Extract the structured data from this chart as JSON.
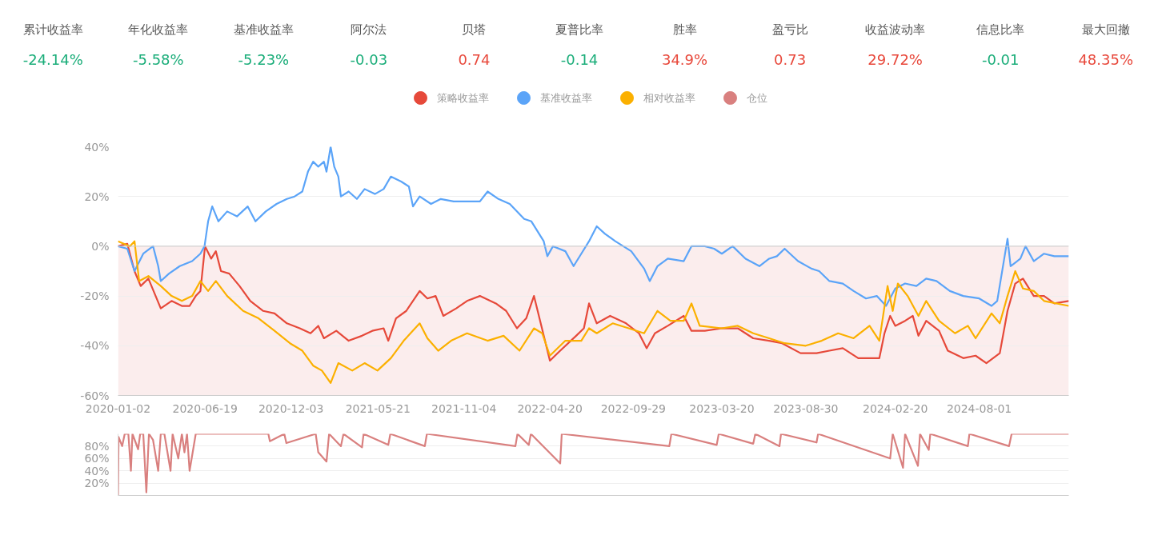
{
  "chart_data": [
    {
      "type": "other",
      "categories": [
        "累计收益率",
        "年化收益率",
        "基准收益率",
        "阿尔法",
        "贝塔",
        "夏普比率",
        "胜率",
        "盈亏比",
        "收益波动率",
        "信息比率",
        "最大回撤"
      ],
      "value_labels": [
        "-24.14%",
        "-5.58%",
        "-5.23%",
        "-0.03",
        "0.74",
        "-0.14",
        "34.9%",
        "0.73",
        "29.72%",
        "-0.01",
        "48.35%"
      ]
    },
    {
      "type": "line",
      "legend": "top",
      "grid": "y",
      "marker": "none",
      "line_style": "solid",
      "xlim": [
        "2020-01-02",
        "2025-01-22"
      ],
      "ylim": [
        -60,
        40
      ],
      "xticks": [
        "2020-01-02",
        "2020-06-19",
        "2020-12-03",
        "2021-05-21",
        "2021-11-04",
        "2022-04-20",
        "2022-09-29",
        "2023-03-20",
        "2023-08-30",
        "2024-02-20",
        "2024-08-01"
      ],
      "yticks": [
        {
          "value": -60,
          "label": "-60%"
        },
        {
          "value": -40,
          "label": "-40%"
        },
        {
          "value": -20,
          "label": "-20%"
        },
        {
          "value": 0,
          "label": "0%"
        },
        {
          "value": 20,
          "label": "20%"
        },
        {
          "value": 40,
          "label": "40%"
        }
      ],
      "bands": [
        {
          "axis": "y",
          "from": 0,
          "to": -60,
          "color": "#fbeded"
        }
      ],
      "series": [
        {
          "name": "策略收益率",
          "color": "#e6493a",
          "x": [
            "2020-01-02",
            "2020-01-20",
            "2020-02-03",
            "2020-02-15",
            "2020-03-01",
            "2020-03-25",
            "2020-04-15",
            "2020-05-05",
            "2020-05-20",
            "2020-06-01",
            "2020-06-10",
            "2020-06-19",
            "2020-07-01",
            "2020-07-10",
            "2020-07-20",
            "2020-08-05",
            "2020-08-25",
            "2020-09-15",
            "2020-10-10",
            "2020-11-01",
            "2020-11-25",
            "2020-12-20",
            "2021-01-10",
            "2021-01-25",
            "2021-02-05",
            "2021-03-01",
            "2021-03-25",
            "2021-04-20",
            "2021-05-10",
            "2021-06-01",
            "2021-06-10",
            "2021-06-25",
            "2021-07-15",
            "2021-08-10",
            "2021-08-25",
            "2021-09-10",
            "2021-09-25",
            "2021-10-20",
            "2021-11-10",
            "2021-12-05",
            "2022-01-05",
            "2022-01-25",
            "2022-02-15",
            "2022-03-05",
            "2022-03-20",
            "2022-04-01",
            "2022-04-20",
            "2022-05-10",
            "2022-06-10",
            "2022-06-25",
            "2022-07-05",
            "2022-07-20",
            "2022-08-15",
            "2022-09-15",
            "2022-10-10",
            "2022-10-25",
            "2022-11-10",
            "2022-12-05",
            "2023-01-05",
            "2023-01-20",
            "2023-02-15",
            "2023-03-20",
            "2023-04-20",
            "2023-05-20",
            "2023-06-20",
            "2023-07-15",
            "2023-08-20",
            "2023-09-20",
            "2023-10-15",
            "2023-11-10",
            "2023-12-10",
            "2024-01-20",
            "2024-01-30",
            "2024-02-10",
            "2024-02-20",
            "2024-03-10",
            "2024-03-25",
            "2024-04-05",
            "2024-04-20",
            "2024-05-15",
            "2024-06-01",
            "2024-07-01",
            "2024-07-25",
            "2024-08-15",
            "2024-09-10",
            "2024-09-25",
            "2024-10-10",
            "2024-10-25",
            "2024-11-15",
            "2024-12-05",
            "2024-12-25",
            "2025-01-22"
          ],
          "values": [
            0,
            1,
            -10,
            -16,
            -13,
            -25,
            -22,
            -24,
            -24,
            -20,
            -18,
            0,
            -5,
            -2,
            -10,
            -11,
            -16,
            -22,
            -26,
            -27,
            -31,
            -33,
            -35,
            -32,
            -37,
            -34,
            -38,
            -36,
            -34,
            -33,
            -38,
            -29,
            -26,
            -18,
            -21,
            -20,
            -28,
            -25,
            -22,
            -20,
            -23,
            -26,
            -33,
            -29,
            -20,
            -30,
            -46,
            -42,
            -36,
            -33,
            -23,
            -31,
            -28,
            -31,
            -35,
            -41,
            -35,
            -32,
            -28,
            -34,
            -34,
            -33,
            -33,
            -37,
            -38,
            -39,
            -43,
            -43,
            -42,
            -41,
            -45,
            -45,
            -35,
            -28,
            -32,
            -30,
            -28,
            -36,
            -30,
            -34,
            -42,
            -45,
            -44,
            -47,
            -43,
            -26,
            -15,
            -13,
            -20,
            -20,
            -23,
            -22
          ]
        },
        {
          "name": "基准收益率",
          "color": "#5ba4f8",
          "x": [
            "2020-01-02",
            "2020-01-20",
            "2020-02-03",
            "2020-02-20",
            "2020-03-10",
            "2020-03-20",
            "2020-03-25",
            "2020-04-10",
            "2020-05-01",
            "2020-05-25",
            "2020-06-10",
            "2020-06-18",
            "2020-06-25",
            "2020-07-03",
            "2020-07-15",
            "2020-08-01",
            "2020-08-20",
            "2020-09-10",
            "2020-09-25",
            "2020-10-15",
            "2020-11-05",
            "2020-11-25",
            "2020-12-10",
            "2020-12-25",
            "2021-01-05",
            "2021-01-15",
            "2021-01-25",
            "2021-02-05",
            "2021-02-10",
            "2021-02-18",
            "2021-02-25",
            "2021-03-05",
            "2021-03-10",
            "2021-03-25",
            "2021-04-10",
            "2021-04-25",
            "2021-05-15",
            "2021-06-01",
            "2021-06-15",
            "2021-07-05",
            "2021-07-20",
            "2021-07-28",
            "2021-08-10",
            "2021-09-01",
            "2021-09-20",
            "2021-10-15",
            "2021-11-10",
            "2021-12-05",
            "2021-12-20",
            "2022-01-10",
            "2022-02-01",
            "2022-03-01",
            "2022-03-15",
            "2022-04-08",
            "2022-04-15",
            "2022-04-26",
            "2022-05-20",
            "2022-06-05",
            "2022-06-20",
            "2022-07-05",
            "2022-07-20",
            "2022-08-05",
            "2022-08-25",
            "2022-09-25",
            "2022-10-20",
            "2022-10-31",
            "2022-11-15",
            "2022-12-05",
            "2023-01-05",
            "2023-01-20",
            "2023-02-15",
            "2023-03-05",
            "2023-03-20",
            "2023-04-10",
            "2023-05-05",
            "2023-06-01",
            "2023-06-20",
            "2023-07-05",
            "2023-07-20",
            "2023-08-15",
            "2023-09-10",
            "2023-09-25",
            "2023-10-15",
            "2023-11-10",
            "2023-12-01",
            "2023-12-25",
            "2024-01-15",
            "2024-02-02",
            "2024-02-20",
            "2024-03-10",
            "2024-04-01",
            "2024-04-20",
            "2024-05-10",
            "2024-06-05",
            "2024-07-01",
            "2024-08-01",
            "2024-08-25",
            "2024-09-05",
            "2024-09-25",
            "2024-10-01",
            "2024-10-20",
            "2024-10-30",
            "2024-11-15",
            "2024-12-05",
            "2024-12-25",
            "2025-01-22"
          ],
          "values": [
            0,
            -1,
            -10,
            -3,
            0,
            -8,
            -14,
            -11,
            -8,
            -6,
            -3,
            0,
            10,
            16,
            10,
            14,
            12,
            16,
            10,
            14,
            17,
            19,
            20,
            22,
            30,
            34,
            32,
            34,
            30,
            40,
            32,
            28,
            20,
            22,
            19,
            23,
            21,
            23,
            28,
            26,
            24,
            16,
            20,
            17,
            19,
            18,
            18,
            18,
            22,
            19,
            17,
            11,
            10,
            2,
            -4,
            0,
            -2,
            -8,
            -3,
            2,
            8,
            5,
            2,
            -2,
            -9,
            -14,
            -8,
            -5,
            -6,
            0,
            0,
            -1,
            -3,
            0,
            -5,
            -8,
            -5,
            -4,
            -1,
            -6,
            -9,
            -10,
            -14,
            -15,
            -18,
            -21,
            -20,
            -24,
            -17,
            -15,
            -16,
            -13,
            -14,
            -18,
            -20,
            -21,
            -24,
            -22,
            3,
            -8,
            -5,
            0,
            -6,
            -3,
            -4,
            -4
          ]
        },
        {
          "name": "相对收益率",
          "color": "#fbb000",
          "x": [
            "2020-01-02",
            "2020-01-25",
            "2020-02-03",
            "2020-02-12",
            "2020-03-01",
            "2020-03-25",
            "2020-04-15",
            "2020-05-05",
            "2020-05-25",
            "2020-06-10",
            "2020-06-25",
            "2020-07-10",
            "2020-08-01",
            "2020-09-01",
            "2020-10-01",
            "2020-11-01",
            "2020-12-01",
            "2020-12-25",
            "2021-01-15",
            "2021-02-01",
            "2021-02-18",
            "2021-03-05",
            "2021-04-01",
            "2021-04-25",
            "2021-05-20",
            "2021-06-15",
            "2021-07-10",
            "2021-08-10",
            "2021-08-25",
            "2021-09-15",
            "2021-10-10",
            "2021-11-10",
            "2021-12-20",
            "2022-01-20",
            "2022-02-20",
            "2022-03-20",
            "2022-04-05",
            "2022-04-20",
            "2022-05-20",
            "2022-06-20",
            "2022-07-05",
            "2022-07-20",
            "2022-08-20",
            "2022-09-20",
            "2022-10-20",
            "2022-11-15",
            "2022-12-10",
            "2023-01-05",
            "2023-01-20",
            "2023-02-05",
            "2023-03-20",
            "2023-04-20",
            "2023-05-20",
            "2023-06-20",
            "2023-07-20",
            "2023-08-30",
            "2023-09-30",
            "2023-11-01",
            "2023-12-01",
            "2024-01-01",
            "2024-01-20",
            "2024-02-05",
            "2024-02-15",
            "2024-02-25",
            "2024-03-15",
            "2024-04-05",
            "2024-04-20",
            "2024-05-15",
            "2024-06-15",
            "2024-07-10",
            "2024-07-25",
            "2024-08-25",
            "2024-09-10",
            "2024-09-25",
            "2024-10-10",
            "2024-10-25",
            "2024-11-15",
            "2024-12-05",
            "2025-01-22"
          ],
          "values": [
            2,
            0,
            2,
            -14,
            -12,
            -16,
            -20,
            -22,
            -20,
            -14,
            -18,
            -14,
            -20,
            -26,
            -29,
            -34,
            -39,
            -42,
            -48,
            -50,
            -55,
            -47,
            -50,
            -47,
            -50,
            -45,
            -38,
            -31,
            -37,
            -42,
            -38,
            -35,
            -38,
            -36,
            -42,
            -33,
            -35,
            -44,
            -38,
            -38,
            -33,
            -35,
            -31,
            -33,
            -35,
            -26,
            -30,
            -30,
            -23,
            -32,
            -33,
            -32,
            -35,
            -37,
            -39,
            -40,
            -38,
            -35,
            -37,
            -32,
            -38,
            -16,
            -26,
            -15,
            -20,
            -28,
            -22,
            -30,
            -35,
            -32,
            -37,
            -27,
            -31,
            -20,
            -10,
            -17,
            -18,
            -22,
            -24
          ]
        }
      ]
    },
    {
      "type": "line",
      "legend": "top",
      "grid": "y",
      "marker": "none",
      "line_style": "solid",
      "tick_labels": "y",
      "xlim": [
        "2020-01-02",
        "2025-01-22"
      ],
      "ylim": [
        0,
        100
      ],
      "yticks": [
        {
          "value": 20,
          "label": "20%"
        },
        {
          "value": 40,
          "label": "40%"
        },
        {
          "value": 60,
          "label": "60%"
        },
        {
          "value": 80,
          "label": "80%"
        }
      ],
      "series": [
        {
          "name": "仓位",
          "color": "#d9807f",
          "x": [
            "2020-01-02",
            "2020-01-03",
            "2020-01-10",
            "2020-01-15",
            "2020-01-22",
            "2020-01-27",
            "2020-01-30",
            "2020-02-10",
            "2020-02-14",
            "2020-02-20",
            "2020-02-26",
            "2020-03-02",
            "2020-03-10",
            "2020-03-20",
            "2020-03-25",
            "2020-04-01",
            "2020-04-13",
            "2020-04-17",
            "2020-04-28",
            "2020-05-05",
            "2020-05-10",
            "2020-05-15",
            "2020-05-20",
            "2020-06-01",
            "2020-10-20",
            "2020-10-23",
            "2020-11-20",
            "2020-11-24",
            "2021-01-20",
            "2021-01-25",
            "2021-02-10",
            "2021-02-15",
            "2021-03-10",
            "2021-03-15",
            "2021-04-20",
            "2021-04-23",
            "2021-06-10",
            "2021-06-14",
            "2021-08-20",
            "2021-08-24",
            "2022-02-12",
            "2022-02-16",
            "2022-03-10",
            "2022-03-14",
            "2022-05-10",
            "2022-05-13",
            "2022-12-08",
            "2022-12-12",
            "2023-03-10",
            "2023-03-14",
            "2023-05-20",
            "2023-05-24",
            "2023-07-10",
            "2023-07-13",
            "2023-09-20",
            "2023-09-23",
            "2024-02-10",
            "2024-02-15",
            "2024-03-06",
            "2024-03-10",
            "2024-04-04",
            "2024-04-08",
            "2024-04-25",
            "2024-04-28",
            "2024-07-10",
            "2024-07-13",
            "2024-09-28",
            "2024-10-03",
            "2025-01-22"
          ],
          "values": [
            0,
            95,
            80,
            100,
            100,
            40,
            100,
            75,
            100,
            100,
            5,
            100,
            90,
            40,
            100,
            100,
            40,
            100,
            60,
            100,
            70,
            100,
            40,
            100,
            100,
            88,
            100,
            85,
            100,
            70,
            55,
            100,
            80,
            100,
            78,
            100,
            82,
            100,
            80,
            100,
            80,
            100,
            82,
            100,
            52,
            100,
            80,
            100,
            82,
            100,
            84,
            100,
            80,
            100,
            86,
            100,
            60,
            100,
            45,
            100,
            48,
            100,
            74,
            100,
            80,
            100,
            80,
            100,
            100
          ]
        }
      ]
    }
  ]
}
